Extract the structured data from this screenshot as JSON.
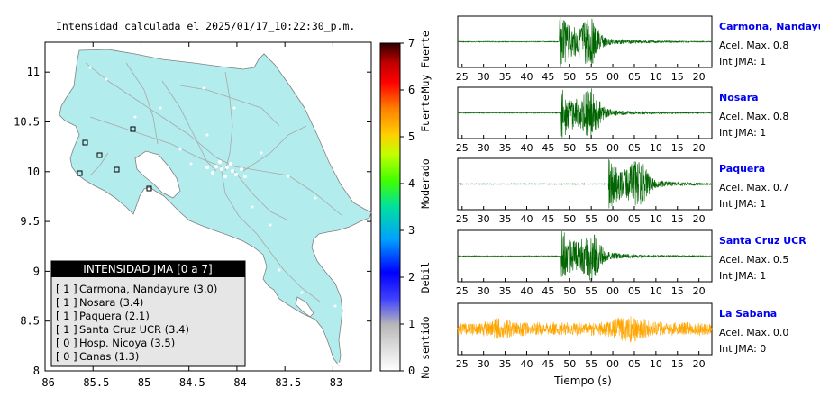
{
  "title": "Intensidad calculada el 2025/01/17_10:22:30_p.m.",
  "map": {
    "x_ticks": [
      "-86",
      "-85.5",
      "-85",
      "-84.5",
      "-84",
      "-83.5",
      "-83"
    ],
    "y_ticks": [
      "11",
      "10.5",
      "10",
      "9.5",
      "9",
      "8.5",
      "8"
    ],
    "xlim": [
      -86,
      -82.6
    ],
    "ylim": [
      8,
      11.3
    ],
    "land_color": "#b3ecec"
  },
  "legend": {
    "title": "INTENSIDAD JMA [0 a 7]",
    "rows": [
      {
        "level": "[ 1 ]",
        "station": "Carmona, Nandayure (3.0)"
      },
      {
        "level": "[ 1 ]",
        "station": "Nosara (3.4)"
      },
      {
        "level": "[ 1 ]",
        "station": "Paquera (2.1)"
      },
      {
        "level": "[ 1 ]",
        "station": "Santa Cruz UCR (3.4)"
      },
      {
        "level": "[ 0 ]",
        "station": "Hosp. Nicoya (3.5)"
      },
      {
        "level": "[ 0 ]",
        "station": "Canas (1.3)"
      }
    ]
  },
  "colorbar": {
    "ticks": [
      "0",
      "1",
      "2",
      "3",
      "4",
      "5",
      "6",
      "7"
    ],
    "categories": [
      "No sentido",
      "Debil",
      "Moderado",
      "Fuerte",
      "Muy Fuerte"
    ]
  },
  "traces": {
    "x_ticks": [
      "25",
      "30",
      "35",
      "40",
      "45",
      "50",
      "55",
      "00",
      "05",
      "10",
      "15",
      "20"
    ],
    "xlabel": "Tiempo (s)",
    "stations": [
      {
        "name": "Carmona, Nandayure",
        "acel": "Acel. Max. 0.8",
        "int": "Int JMA: 1",
        "color": "#006400",
        "onset": 47.5,
        "amp": 0.9
      },
      {
        "name": "Nosara",
        "acel": "Acel. Max. 0.8",
        "int": "Int JMA: 1",
        "color": "#006400",
        "onset": 48.0,
        "amp": 0.9
      },
      {
        "name": "Paquera",
        "acel": "Acel. Max. 0.7",
        "int": "Int JMA: 1",
        "color": "#006400",
        "onset": 59.0,
        "amp": 0.9
      },
      {
        "name": "Santa Cruz UCR",
        "acel": "Acel. Max. 0.5",
        "int": "Int JMA: 1",
        "color": "#006400",
        "onset": 48.0,
        "amp": 0.9
      },
      {
        "name": "La Sabana",
        "acel": "Acel. Max. 0.0",
        "int": "Int JMA: 0",
        "color": "#ffa500",
        "onset": 24.0,
        "amp": 0.6
      }
    ]
  }
}
